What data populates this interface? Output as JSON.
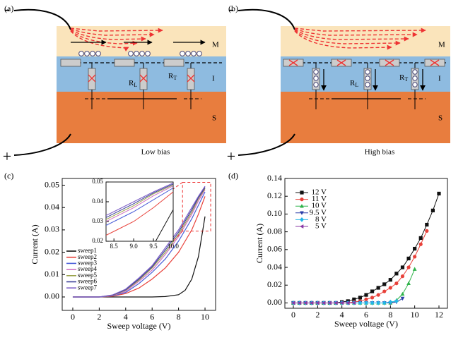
{
  "diagrams": [
    {
      "label": "(a)",
      "layers": [
        "M",
        "I",
        "S"
      ],
      "resistors": [
        {
          "text": "R",
          "sub": "L"
        },
        {
          "text": "R",
          "sub": "T"
        }
      ],
      "caption": "Low bias",
      "terminals": [
        "-",
        "+"
      ]
    },
    {
      "label": "(b)",
      "layers": [
        "M",
        "I",
        "S"
      ],
      "resistors": [
        {
          "text": "R",
          "sub": "L"
        },
        {
          "text": "R",
          "sub": "T"
        }
      ],
      "caption": "High bias",
      "terminals": [
        "-",
        "+"
      ]
    }
  ],
  "chart_data": [
    {
      "type": "line",
      "label": "(c)",
      "xlabel": "Sweep voltage (V)",
      "ylabel": "Current (A)",
      "x": [
        0,
        1,
        2,
        3,
        4,
        5,
        6,
        7,
        8,
        8.5,
        9,
        9.5,
        10
      ],
      "series": [
        {
          "name": "sweep1",
          "color": "#111111",
          "values": [
            0,
            0,
            0,
            0,
            0,
            0,
            0,
            0.0002,
            0.001,
            0.003,
            0.008,
            0.018,
            0.036
          ]
        },
        {
          "name": "sweep2",
          "color": "#e8413a",
          "values": [
            0,
            0,
            0,
            0.0003,
            0.0015,
            0.004,
            0.008,
            0.013,
            0.02,
            0.025,
            0.03,
            0.037,
            0.045
          ]
        },
        {
          "name": "sweep3",
          "color": "#4b5fd8",
          "values": [
            0,
            0,
            0,
            0.0005,
            0.002,
            0.006,
            0.011,
            0.017,
            0.025,
            0.03,
            0.035,
            0.041,
            0.047
          ]
        },
        {
          "name": "sweep4",
          "color": "#d070c0",
          "values": [
            0,
            0,
            0,
            0.0006,
            0.0025,
            0.007,
            0.012,
            0.019,
            0.027,
            0.032,
            0.037,
            0.043,
            0.048
          ]
        },
        {
          "name": "sweep5",
          "color": "#9aa24b",
          "values": [
            0,
            0,
            0,
            0.0007,
            0.003,
            0.0075,
            0.013,
            0.02,
            0.028,
            0.033,
            0.038,
            0.044,
            0.0485
          ]
        },
        {
          "name": "sweep6",
          "color": "#3a3f98",
          "values": [
            0,
            0,
            0,
            0.0008,
            0.0032,
            0.008,
            0.0135,
            0.021,
            0.029,
            0.034,
            0.039,
            0.0445,
            0.049
          ]
        },
        {
          "name": "sweep7",
          "color": "#7b5cc6",
          "values": [
            0,
            0,
            0,
            0.0009,
            0.0035,
            0.0085,
            0.014,
            0.022,
            0.03,
            0.035,
            0.04,
            0.045,
            0.0495
          ]
        }
      ],
      "xlim": [
        -0.8,
        10.8
      ],
      "ylim": [
        -0.006,
        0.053
      ],
      "xticks": [
        0,
        2,
        4,
        6,
        8,
        10
      ],
      "yticks": [
        {
          "value": 0,
          "label": "0.00"
        },
        0.01,
        0.02,
        0.03,
        0.04,
        0.05
      ],
      "inset": {
        "xlim": [
          8.3,
          10
        ],
        "ylim": [
          0.02,
          0.05
        ],
        "xticks": [
          8.5,
          {
            "value": 9,
            "label": "9.0"
          },
          9.5,
          {
            "value": 10,
            "label": "10.0"
          }
        ],
        "yticks": [
          0.02,
          0.03,
          0.04,
          0.05
        ]
      }
    },
    {
      "type": "line-marker",
      "label": "(d)",
      "xlabel": "Sweep voltage (V)",
      "ylabel": "Current (A)",
      "series": [
        {
          "name": "12 V",
          "color": "#111111",
          "marker": "square",
          "x": [
            0,
            0.5,
            1,
            1.5,
            2,
            2.5,
            3,
            3.5,
            4,
            4.5,
            5,
            5.5,
            6,
            6.5,
            7,
            7.5,
            8,
            8.5,
            9,
            9.5,
            10,
            10.5,
            11,
            11.5,
            12
          ],
          "values": [
            0,
            0,
            0,
            0,
            0,
            0,
            0,
            0,
            0.001,
            0.002,
            0.004,
            0.006,
            0.009,
            0.013,
            0.017,
            0.021,
            0.026,
            0.033,
            0.04,
            0.05,
            0.061,
            0.073,
            0.088,
            0.104,
            0.123
          ]
        },
        {
          "name": "11 V",
          "color": "#e8413a",
          "marker": "circle",
          "x": [
            0,
            0.5,
            1,
            1.5,
            2,
            2.5,
            3,
            3.5,
            4,
            4.5,
            5,
            5.5,
            6,
            6.5,
            7,
            7.5,
            8,
            8.5,
            9,
            9.5,
            10,
            10.5,
            11
          ],
          "values": [
            0,
            0,
            0,
            0,
            0,
            0,
            0,
            0,
            0,
            0,
            0.001,
            0.002,
            0.004,
            0.006,
            0.009,
            0.013,
            0.017,
            0.022,
            0.03,
            0.04,
            0.052,
            0.066,
            0.081
          ]
        },
        {
          "name": "10 V",
          "color": "#2fb34a",
          "marker": "triangle",
          "x": [
            0,
            0.5,
            1,
            1.5,
            2,
            2.5,
            3,
            3.5,
            4,
            4.5,
            5,
            5.5,
            6,
            6.5,
            7,
            7.5,
            8,
            8.5,
            9,
            9.5,
            10
          ],
          "values": [
            0,
            0,
            0,
            0,
            0,
            0,
            0,
            0,
            0,
            0,
            0,
            0,
            0,
            0,
            0,
            0,
            0,
            0.003,
            0.01,
            0.022,
            0.038
          ]
        },
        {
          "name": "9.5 V",
          "color": "#2b3fa8",
          "marker": "triangle-down",
          "x": [
            0,
            0.5,
            1,
            1.5,
            2,
            2.5,
            3,
            3.5,
            4,
            4.5,
            5,
            5.5,
            6,
            6.5,
            7,
            7.5,
            8,
            8.5,
            9
          ],
          "values": [
            0,
            0,
            0,
            0,
            0,
            0,
            0,
            0,
            0,
            0,
            0,
            0,
            0,
            0,
            0,
            0,
            0,
            0.001,
            0.005
          ]
        },
        {
          "name": "8 V",
          "color": "#22b5e6",
          "marker": "diamond",
          "x": [
            0,
            0.5,
            1,
            1.5,
            2,
            2.5,
            3,
            3.5,
            4,
            4.5,
            5,
            5.5,
            6,
            6.5,
            7,
            7.5,
            8,
            8.5
          ],
          "values": [
            0,
            0,
            0,
            0,
            0,
            0,
            0,
            0,
            0,
            0,
            0,
            0,
            0,
            0,
            0,
            0,
            0.001,
            0.002
          ]
        },
        {
          "name": "5 V",
          "color": "#8a3aa6",
          "marker": "triangle-left",
          "x": [
            0,
            0.5,
            1,
            1.5,
            2,
            2.5,
            3,
            3.5,
            4,
            4.5,
            5
          ],
          "values": [
            0,
            0,
            0,
            0,
            0,
            0,
            0,
            0,
            0,
            0,
            0
          ]
        }
      ],
      "xlim": [
        -0.7,
        12.7
      ],
      "ylim": [
        -0.006,
        0.14
      ],
      "xticks": [
        0,
        2,
        4,
        6,
        8,
        10,
        12
      ],
      "yticks": [
        {
          "value": 0,
          "label": "0.00"
        },
        0.02,
        0.04,
        0.06,
        0.08,
        {
          "value": 0.1,
          "label": "0.10"
        },
        0.12,
        0.14
      ]
    }
  ]
}
